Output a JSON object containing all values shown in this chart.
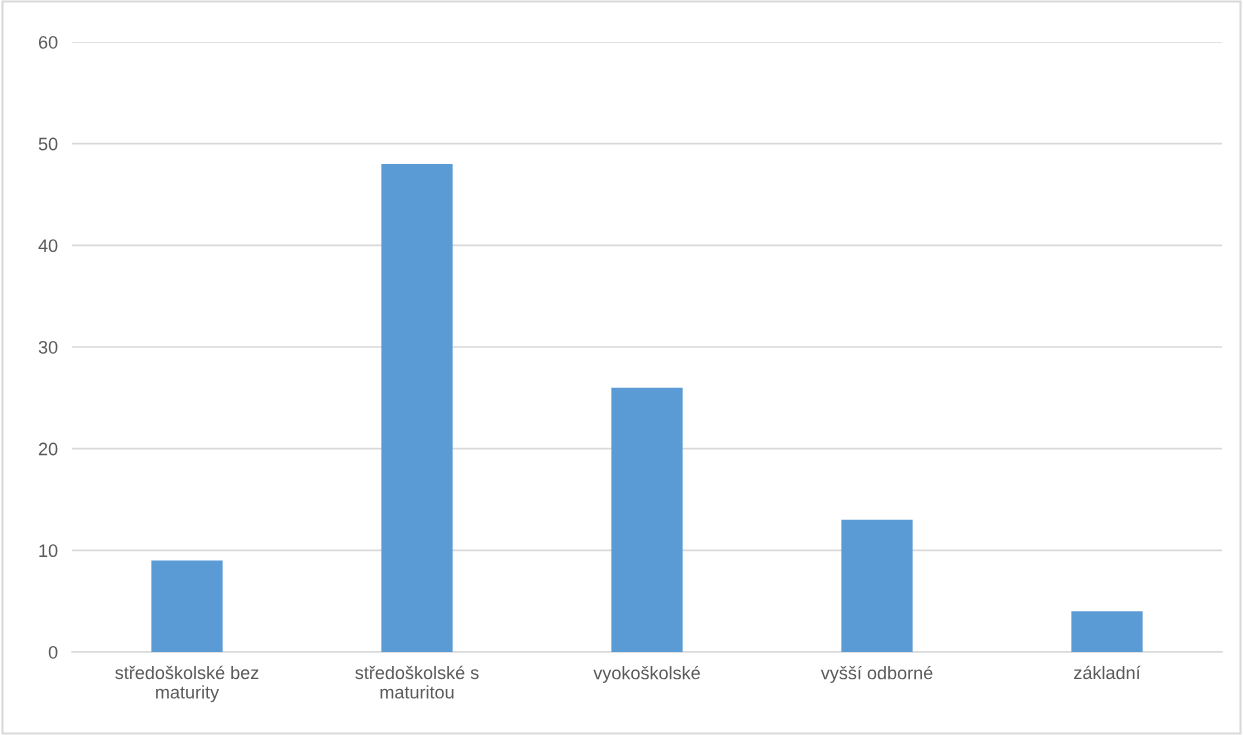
{
  "chart_data": {
    "type": "bar",
    "categories": [
      "středoškolské bez\nmaturity",
      "středoškolské s\nmaturitou",
      "vyokoškolské",
      "vyšší odborné",
      "základní"
    ],
    "values": [
      9,
      48,
      26,
      13,
      4
    ],
    "color": "#5b9bd5",
    "ylim": [
      0,
      60
    ],
    "yticks": [
      0,
      10,
      20,
      30,
      40,
      50,
      60
    ],
    "grid": "y"
  }
}
